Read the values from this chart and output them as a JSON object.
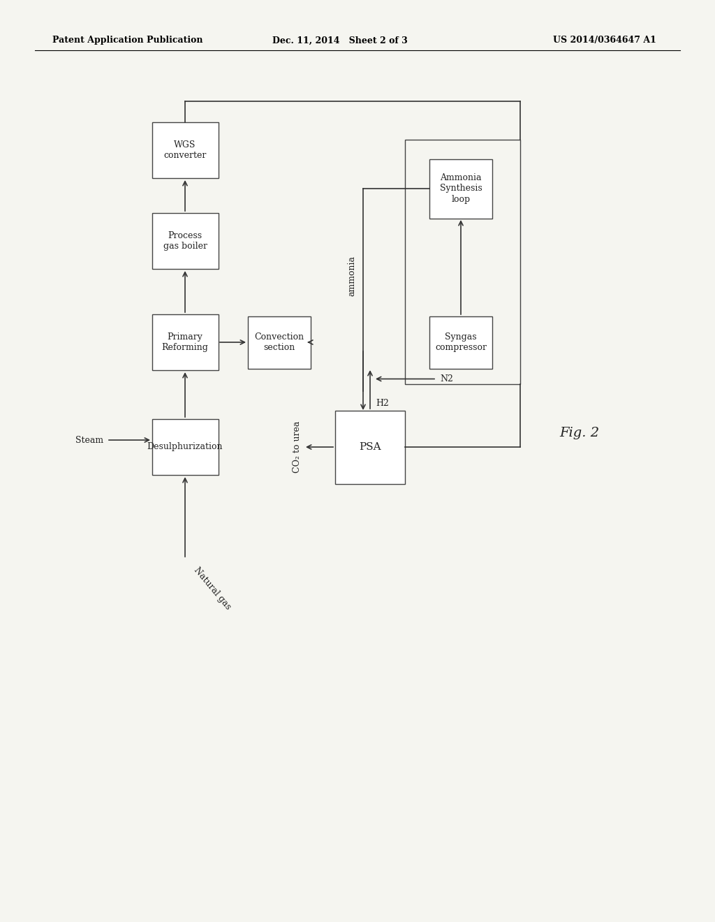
{
  "bg_color": "#f5f5f0",
  "header_left": "Patent Application Publication",
  "header_center": "Dec. 11, 2014   Sheet 2 of 3",
  "header_right": "US 2014/0364647 A1",
  "fig_label": "Fig. 2",
  "font_size_box": 9,
  "font_size_header": 9
}
